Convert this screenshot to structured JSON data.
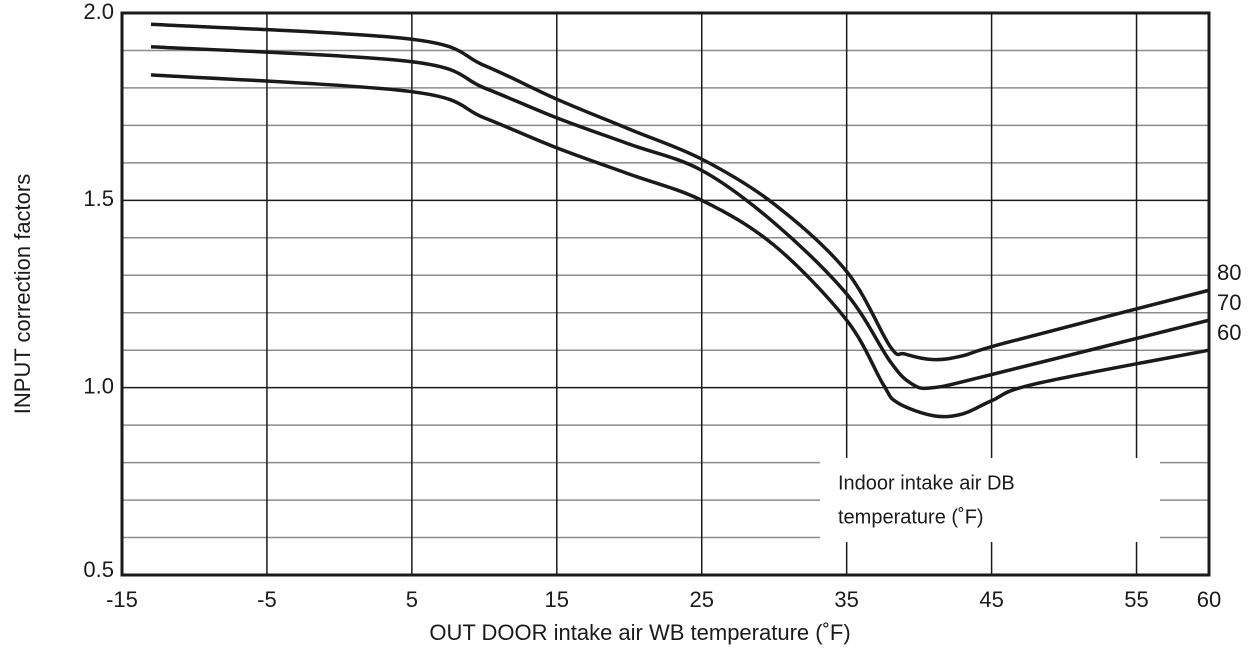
{
  "chart_data": {
    "type": "line",
    "xlabel": "OUT DOOR intake air WB temperature (˚F)",
    "ylabel": "INPUT  correction factors",
    "annotation": [
      "Indoor intake air DB",
      "temperature (˚F)"
    ],
    "xlim": [
      -15,
      60
    ],
    "xticks": [
      -15,
      -5,
      5,
      15,
      25,
      35,
      45,
      55,
      60
    ],
    "ylim": [
      0.5,
      2.0
    ],
    "yticks": [
      {
        "value": 0.5,
        "label": "0.5"
      },
      {
        "value": 1,
        "label": "1.0"
      },
      {
        "value": 1.5,
        "label": "1.5"
      },
      {
        "value": 2,
        "label": "2.0"
      }
    ],
    "yminorticks": [
      0.6,
      0.7,
      0.8,
      0.9,
      1.1,
      1.2,
      1.3,
      1.4,
      1.6,
      1.7,
      1.8,
      1.9
    ],
    "grid": true,
    "series": [
      {
        "name": "80",
        "color": "#1a1a1a",
        "x": [
          -13,
          5,
          10,
          15,
          20,
          25,
          30,
          35,
          38,
          39,
          41,
          43,
          46,
          60
        ],
        "values": [
          1.97,
          1.93,
          1.86,
          1.77,
          1.69,
          1.61,
          1.49,
          1.31,
          1.11,
          1.09,
          1.075,
          1.085,
          1.12,
          1.26
        ]
      },
      {
        "name": "70",
        "color": "#1a1a1a",
        "x": [
          -13,
          5,
          10,
          15,
          20,
          25,
          30,
          35,
          38,
          39.5,
          41,
          45,
          60
        ],
        "values": [
          1.91,
          1.87,
          1.8,
          1.72,
          1.65,
          1.58,
          1.44,
          1.25,
          1.07,
          1.01,
          1.0,
          1.035,
          1.18
        ]
      },
      {
        "name": "60",
        "color": "#1a1a1a",
        "x": [
          -13,
          5,
          10,
          15,
          20,
          25,
          30,
          35,
          37.5,
          38.5,
          41,
          43,
          45,
          48,
          60
        ],
        "values": [
          1.835,
          1.79,
          1.72,
          1.64,
          1.57,
          1.5,
          1.38,
          1.18,
          1.01,
          0.96,
          0.925,
          0.93,
          0.965,
          1.01,
          1.1
        ]
      }
    ]
  }
}
